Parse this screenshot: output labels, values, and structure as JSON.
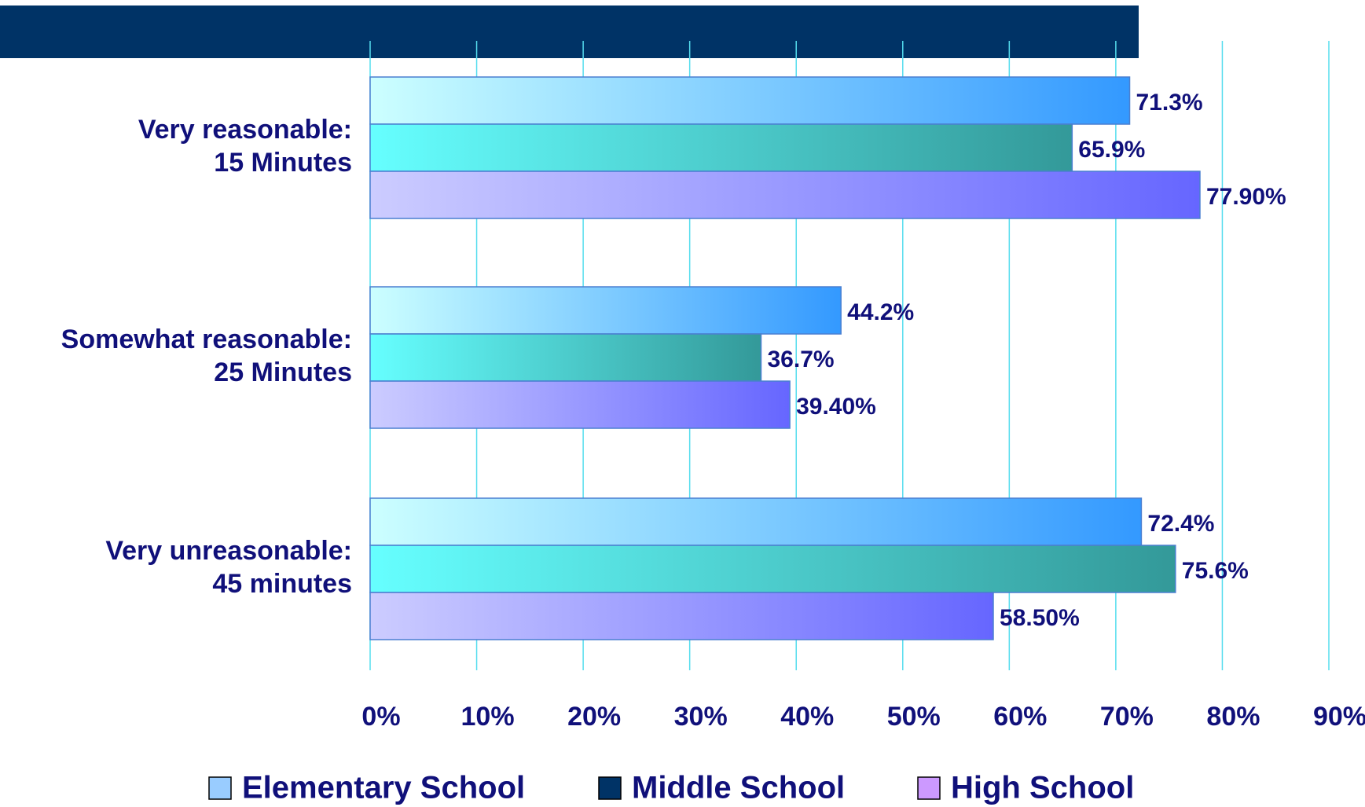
{
  "chart_data": {
    "type": "barh",
    "categories": [
      "Very reasonable:\n15 Minutes",
      "Somewhat reasonable:\n25 Minutes",
      "Very unreasonable:\n45 minutes"
    ],
    "series": [
      {
        "name": "Elementary School",
        "color": "#99ccff",
        "gradient": [
          "#ccffff",
          "#3399ff"
        ],
        "values": [
          71.3,
          44.2,
          72.4
        ],
        "value_labels": [
          "71.3%",
          "44.2%",
          "72.4%"
        ]
      },
      {
        "name": "Middle School",
        "color": "#003366",
        "gradient": [
          "#66ffff",
          "#339999"
        ],
        "values": [
          65.9,
          36.7,
          75.6
        ],
        "value_labels": [
          "65.9%",
          "36.7%",
          "75.6%"
        ]
      },
      {
        "name": "High School",
        "color": "#cc99ff",
        "gradient": [
          "#ccccff",
          "#6666ff"
        ],
        "values": [
          77.9,
          39.4,
          58.5
        ],
        "value_labels": [
          "77.90%",
          "39.40%",
          "58.50%"
        ]
      }
    ],
    "xlim": [
      0,
      90
    ],
    "xticks": [
      {
        "value": 0,
        "label": "0%"
      },
      {
        "value": 10,
        "label": "10%"
      },
      {
        "value": 20,
        "label": "20%"
      },
      {
        "value": 30,
        "label": "30%"
      },
      {
        "value": 40,
        "label": "40%"
      },
      {
        "value": 50,
        "label": "50%"
      },
      {
        "value": 60,
        "label": "60%"
      },
      {
        "value": 70,
        "label": "70%"
      },
      {
        "value": 80,
        "label": "80%"
      },
      {
        "value": 90,
        "label": "90%"
      }
    ],
    "grid": true,
    "legend": "bottom"
  }
}
